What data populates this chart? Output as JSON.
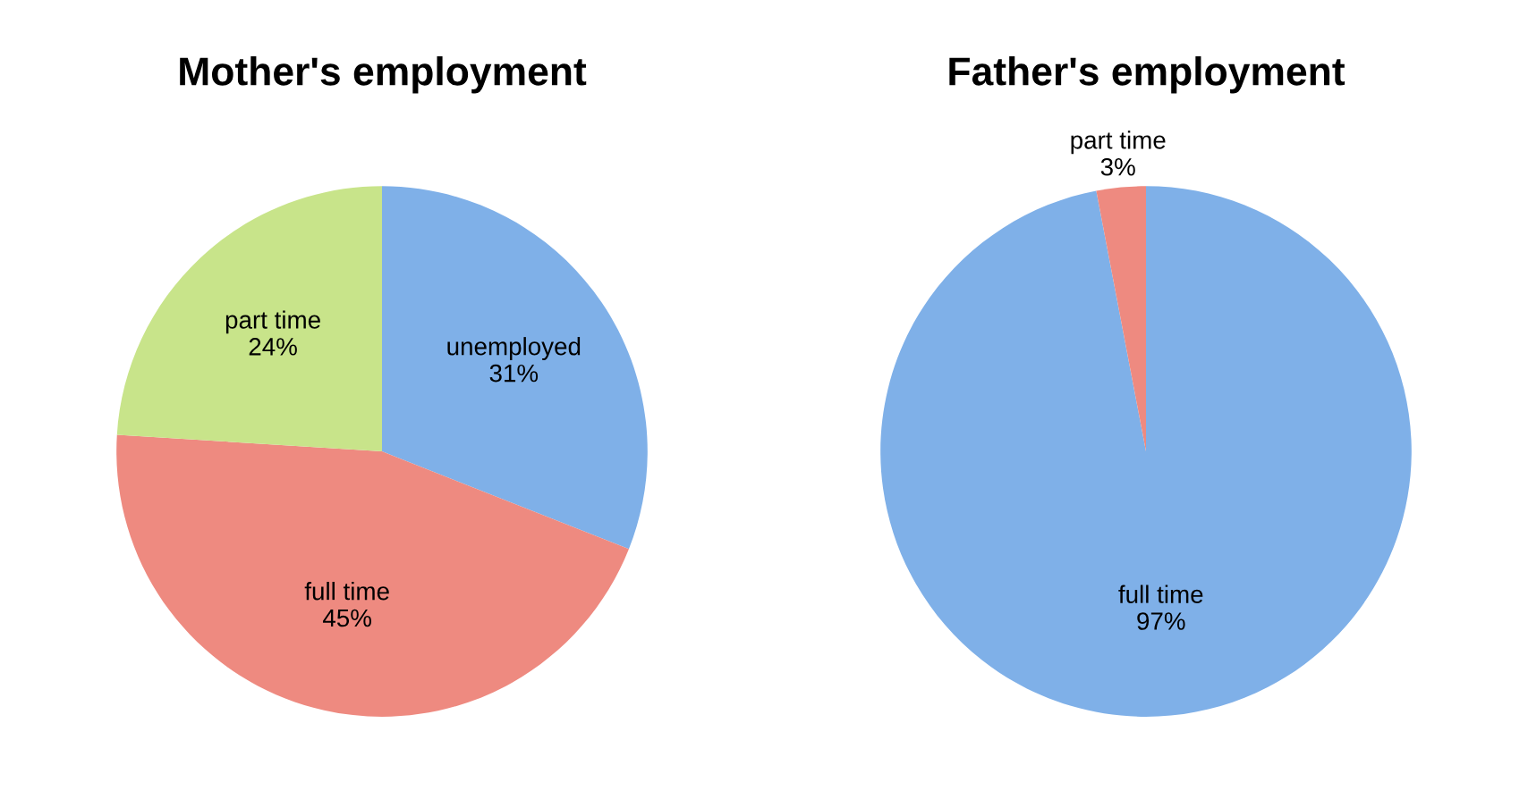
{
  "chart_data": [
    {
      "type": "pie",
      "title": "Mother's employment",
      "categories": [
        "unemployed",
        "full time",
        "part time"
      ],
      "values": [
        31,
        45,
        24
      ],
      "value_labels": [
        "31%",
        "45%",
        "24%"
      ],
      "colors": [
        "#7fb0e8",
        "#ee8a80",
        "#c8e48a"
      ],
      "legend": false
    },
    {
      "type": "pie",
      "title": "Father's employment",
      "categories": [
        "full time",
        "part time"
      ],
      "values": [
        97,
        3
      ],
      "value_labels": [
        "97%",
        "3%"
      ],
      "colors": [
        "#7fb0e8",
        "#ee8a80"
      ],
      "legend": false
    }
  ]
}
